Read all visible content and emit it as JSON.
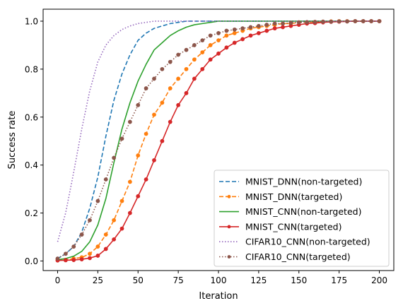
{
  "chart_data": {
    "type": "line",
    "title": "",
    "xlabel": "Iteration",
    "ylabel": "Success rate",
    "xlim": [
      -9,
      209
    ],
    "ylim": [
      -0.04,
      1.05
    ],
    "xticks": [
      0,
      25,
      50,
      75,
      100,
      125,
      150,
      175,
      200
    ],
    "xtick_labels": [
      "0",
      "25",
      "50",
      "75",
      "100",
      "125",
      "150",
      "175",
      "200"
    ],
    "yticks": [
      0.0,
      0.2,
      0.4,
      0.6,
      0.8,
      1.0
    ],
    "ytick_labels": [
      "0.0",
      "0.2",
      "0.4",
      "0.6",
      "0.8",
      "1.0"
    ],
    "grid": false,
    "legend_position": "lower-right",
    "x": [
      0,
      5,
      10,
      15,
      20,
      25,
      30,
      35,
      40,
      45,
      50,
      55,
      60,
      65,
      70,
      75,
      80,
      85,
      90,
      95,
      100,
      105,
      110,
      115,
      120,
      125,
      130,
      135,
      140,
      145,
      150,
      155,
      160,
      165,
      170,
      175,
      180,
      185,
      190,
      195,
      200
    ],
    "series": [
      {
        "name": "MNIST_DNN(non-targeted)",
        "color": "#1f77b4",
        "linestyle": "dashed",
        "marker": "none",
        "values": [
          0.01,
          0.03,
          0.06,
          0.12,
          0.22,
          0.35,
          0.52,
          0.67,
          0.78,
          0.86,
          0.92,
          0.95,
          0.97,
          0.98,
          0.99,
          0.995,
          1.0,
          1.0,
          1.0,
          1.0,
          1.0,
          1.0,
          1.0,
          1.0,
          1.0,
          1.0,
          1.0,
          1.0,
          1.0,
          1.0,
          1.0,
          1.0,
          1.0,
          1.0,
          1.0,
          1.0,
          1.0,
          1.0,
          1.0,
          1.0,
          1.0
        ]
      },
      {
        "name": "MNIST_DNN(targeted)",
        "color": "#ff7f0e",
        "linestyle": "dashed",
        "marker": "circle",
        "values": [
          0.005,
          0.005,
          0.01,
          0.015,
          0.03,
          0.06,
          0.11,
          0.17,
          0.25,
          0.33,
          0.44,
          0.53,
          0.61,
          0.66,
          0.72,
          0.76,
          0.8,
          0.84,
          0.87,
          0.9,
          0.92,
          0.94,
          0.95,
          0.96,
          0.97,
          0.975,
          0.98,
          0.985,
          0.99,
          0.99,
          0.995,
          0.995,
          0.997,
          0.998,
          0.999,
          1.0,
          1.0,
          1.0,
          1.0,
          1.0,
          1.0
        ]
      },
      {
        "name": "MNIST_CNN(non-targeted)",
        "color": "#2ca02c",
        "linestyle": "solid",
        "marker": "none",
        "values": [
          0.005,
          0.01,
          0.02,
          0.04,
          0.08,
          0.15,
          0.26,
          0.41,
          0.55,
          0.66,
          0.75,
          0.82,
          0.88,
          0.91,
          0.94,
          0.96,
          0.975,
          0.985,
          0.99,
          0.995,
          1.0,
          1.0,
          1.0,
          1.0,
          1.0,
          1.0,
          1.0,
          1.0,
          1.0,
          1.0,
          1.0,
          1.0,
          1.0,
          1.0,
          1.0,
          1.0,
          1.0,
          1.0,
          1.0,
          1.0,
          1.0
        ]
      },
      {
        "name": "MNIST_CNN(targeted)",
        "color": "#d62728",
        "linestyle": "solid",
        "marker": "circle",
        "values": [
          0.002,
          0.003,
          0.004,
          0.007,
          0.012,
          0.022,
          0.05,
          0.09,
          0.135,
          0.2,
          0.27,
          0.34,
          0.42,
          0.5,
          0.58,
          0.65,
          0.7,
          0.76,
          0.8,
          0.84,
          0.865,
          0.89,
          0.91,
          0.925,
          0.94,
          0.95,
          0.96,
          0.97,
          0.975,
          0.98,
          0.985,
          0.99,
          0.992,
          0.995,
          0.997,
          0.998,
          0.999,
          1.0,
          1.0,
          1.0,
          1.0
        ]
      },
      {
        "name": "CIFAR10_CNN(non-targeted)",
        "color": "#9467bd",
        "linestyle": "dotted",
        "marker": "none",
        "values": [
          0.08,
          0.2,
          0.37,
          0.55,
          0.71,
          0.83,
          0.9,
          0.94,
          0.965,
          0.98,
          0.99,
          0.995,
          1.0,
          1.0,
          1.0,
          1.0,
          1.0,
          1.0,
          1.0,
          1.0,
          1.0,
          1.0,
          1.0,
          1.0,
          1.0,
          1.0,
          1.0,
          1.0,
          1.0,
          1.0,
          1.0,
          1.0,
          1.0,
          1.0,
          1.0,
          1.0,
          1.0,
          1.0,
          1.0,
          1.0,
          1.0
        ]
      },
      {
        "name": "CIFAR10_CNN(targeted)",
        "color": "#8c564b",
        "linestyle": "dotted",
        "marker": "circle",
        "values": [
          0.01,
          0.03,
          0.06,
          0.11,
          0.17,
          0.25,
          0.34,
          0.43,
          0.51,
          0.58,
          0.65,
          0.72,
          0.76,
          0.8,
          0.83,
          0.86,
          0.88,
          0.9,
          0.92,
          0.94,
          0.95,
          0.96,
          0.965,
          0.97,
          0.975,
          0.98,
          0.985,
          0.99,
          0.99,
          0.993,
          0.995,
          0.996,
          0.997,
          0.998,
          0.998,
          0.999,
          0.999,
          1.0,
          1.0,
          1.0,
          1.0
        ]
      }
    ]
  }
}
